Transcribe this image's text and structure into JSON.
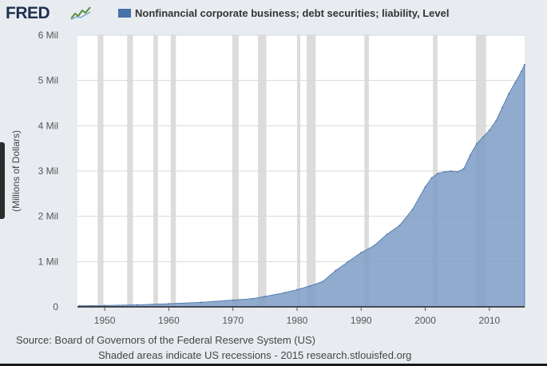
{
  "header": {
    "logo_text": "FRED",
    "logo_icon": "fred-line-graph-icon"
  },
  "colors": {
    "series": "#7d9cc6",
    "series_line": "#4572a7",
    "recession": "#dcdcdc",
    "plot_bg": "#ffffff",
    "grid": "#d8d8d8"
  },
  "chart_data": {
    "type": "area",
    "title": "",
    "legend": "Nonfinancial corporate business; debt securities; liability, Level",
    "legend_position": "top",
    "ylabel": "(Millions of Dollars)",
    "xlabel": "",
    "xlim": [
      1945.75,
      2015.5
    ],
    "ylim": [
      0,
      6000000
    ],
    "y_ticks": [
      {
        "value": 0,
        "label": "0"
      },
      {
        "value": 1000000,
        "label": "1 Mil"
      },
      {
        "value": 2000000,
        "label": "2 Mil"
      },
      {
        "value": 3000000,
        "label": "3 Mil"
      },
      {
        "value": 4000000,
        "label": "4 Mil"
      },
      {
        "value": 5000000,
        "label": "5 Mil"
      },
      {
        "value": 6000000,
        "label": "6 Mil"
      }
    ],
    "x_ticks": [
      {
        "value": 1950,
        "label": "1950"
      },
      {
        "value": 1960,
        "label": "1960"
      },
      {
        "value": 1970,
        "label": "1970"
      },
      {
        "value": 1980,
        "label": "1980"
      },
      {
        "value": 1990,
        "label": "1990"
      },
      {
        "value": 2000,
        "label": "2000"
      },
      {
        "value": 2010,
        "label": "2010"
      }
    ],
    "grid": true,
    "recessions": [
      [
        1948.9,
        1949.8
      ],
      [
        1953.5,
        1954.4
      ],
      [
        1957.6,
        1958.3
      ],
      [
        1960.3,
        1961.1
      ],
      [
        1969.9,
        1970.9
      ],
      [
        1973.9,
        1975.2
      ],
      [
        1980.0,
        1980.5
      ],
      [
        1981.5,
        1982.9
      ],
      [
        1990.5,
        1991.2
      ],
      [
        2001.2,
        2001.9
      ],
      [
        2007.9,
        2009.5
      ]
    ],
    "series": [
      {
        "name": "Nonfinancial corporate business; debt securities; liability, Level",
        "points": [
          [
            1946,
            25000
          ],
          [
            1950,
            30000
          ],
          [
            1955,
            45000
          ],
          [
            1960,
            70000
          ],
          [
            1965,
            100000
          ],
          [
            1970,
            150000
          ],
          [
            1973,
            180000
          ],
          [
            1975,
            230000
          ],
          [
            1978,
            310000
          ],
          [
            1980,
            380000
          ],
          [
            1982,
            460000
          ],
          [
            1984,
            560000
          ],
          [
            1986,
            800000
          ],
          [
            1988,
            1000000
          ],
          [
            1990,
            1200000
          ],
          [
            1992,
            1350000
          ],
          [
            1994,
            1600000
          ],
          [
            1996,
            1800000
          ],
          [
            1998,
            2150000
          ],
          [
            2000,
            2650000
          ],
          [
            2001,
            2850000
          ],
          [
            2002,
            2950000
          ],
          [
            2003,
            2980000
          ],
          [
            2004,
            3000000
          ],
          [
            2005,
            2980000
          ],
          [
            2006,
            3050000
          ],
          [
            2007,
            3350000
          ],
          [
            2008,
            3600000
          ],
          [
            2009,
            3750000
          ],
          [
            2010,
            3900000
          ],
          [
            2011,
            4100000
          ],
          [
            2012,
            4400000
          ],
          [
            2013,
            4700000
          ],
          [
            2014,
            4950000
          ],
          [
            2015,
            5200000
          ],
          [
            2015.5,
            5350000
          ]
        ]
      }
    ]
  },
  "footer": {
    "source": "Source: Board of Governors of the Federal Reserve System (US)",
    "note": "Shaded areas indicate US recessions - 2015 research.stlouisfed.org"
  }
}
